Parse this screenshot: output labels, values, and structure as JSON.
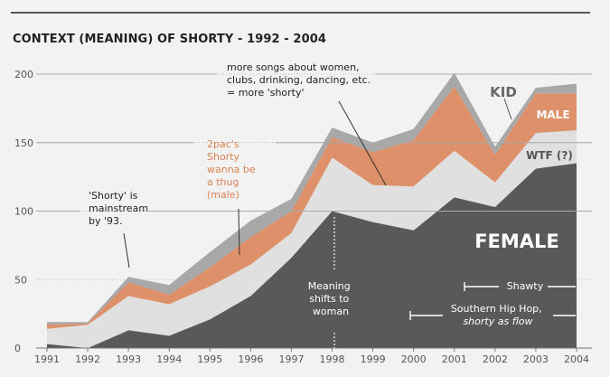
{
  "chart_data": {
    "type": "area",
    "title": "CONTEXT (MEANING) OF SHORTY - 1992 - 2004",
    "xlabel": "",
    "ylabel": "",
    "x": [
      1991,
      1992,
      1993,
      1994,
      1995,
      1996,
      1997,
      1998,
      1999,
      2000,
      2001,
      2002,
      2003,
      2004
    ],
    "ylim": [
      0,
      200
    ],
    "yticks": [
      0,
      50,
      100,
      150,
      200
    ],
    "stacked": true,
    "series": [
      {
        "name": "FEMALE",
        "color": "#595959",
        "values": [
          3,
          0,
          13,
          9,
          21,
          38,
          66,
          100,
          92,
          86,
          110,
          103,
          131,
          135
        ]
      },
      {
        "name": "WTF (?)",
        "color": "#e0e0e0",
        "values": [
          11,
          17,
          25,
          23,
          24,
          23,
          18,
          39,
          27,
          32,
          34,
          18,
          26,
          24
        ]
      },
      {
        "name": "MALE",
        "color": "#dd9069",
        "values": [
          3,
          1,
          10,
          7,
          14,
          20,
          16,
          15,
          24,
          34,
          47,
          20,
          29,
          27
        ]
      },
      {
        "name": "KID",
        "color": "#a8a8a8",
        "values": [
          2,
          1,
          4,
          7,
          11,
          12,
          9,
          7,
          7,
          8,
          10,
          6,
          4,
          7
        ]
      }
    ],
    "annotations": {
      "mainstream": [
        "'Shorty' is",
        "mainstream",
        "by '93."
      ],
      "pac": [
        "2pac's",
        "Shorty",
        "wanna be",
        "a thug",
        "(male)"
      ],
      "more_songs": [
        "more songs about women,",
        "clubs, drinking, dancing, etc.",
        "= more 'shorty'"
      ],
      "meaning_shift": [
        "Meaning",
        "shifts to",
        "woman"
      ],
      "shawty": "Shawty",
      "southern": [
        "Southern Hip Hop,",
        "shorty as flow"
      ]
    },
    "grid": "dotted horizontal",
    "accent_color": "#dd9069"
  }
}
